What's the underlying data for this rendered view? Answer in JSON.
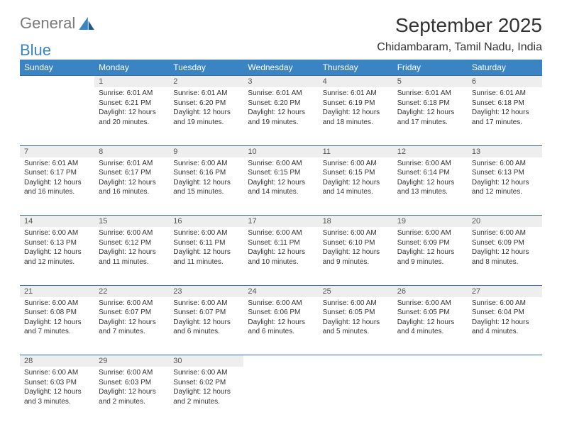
{
  "brand": {
    "part1": "General",
    "part2": "Blue"
  },
  "title": "September 2025",
  "location": "Chidambaram, Tamil Nadu, India",
  "colors": {
    "header_bg": "#3a84c4",
    "header_text": "#ffffff",
    "daynum_bg": "#eeeeee",
    "row_border": "#3a6ea8",
    "text": "#333333",
    "brand_gray": "#7a7a7a",
    "brand_blue": "#3a84c4",
    "page_bg": "#ffffff"
  },
  "typography": {
    "month_title_fontsize": 28,
    "location_fontsize": 16,
    "weekday_fontsize": 12,
    "daynum_fontsize": 11,
    "cell_fontsize": 10
  },
  "weekdays": [
    "Sunday",
    "Monday",
    "Tuesday",
    "Wednesday",
    "Thursday",
    "Friday",
    "Saturday"
  ],
  "weeks": [
    [
      null,
      {
        "n": "1",
        "sr": "Sunrise: 6:01 AM",
        "ss": "Sunset: 6:21 PM",
        "dl": "Daylight: 12 hours and 20 minutes."
      },
      {
        "n": "2",
        "sr": "Sunrise: 6:01 AM",
        "ss": "Sunset: 6:20 PM",
        "dl": "Daylight: 12 hours and 19 minutes."
      },
      {
        "n": "3",
        "sr": "Sunrise: 6:01 AM",
        "ss": "Sunset: 6:20 PM",
        "dl": "Daylight: 12 hours and 19 minutes."
      },
      {
        "n": "4",
        "sr": "Sunrise: 6:01 AM",
        "ss": "Sunset: 6:19 PM",
        "dl": "Daylight: 12 hours and 18 minutes."
      },
      {
        "n": "5",
        "sr": "Sunrise: 6:01 AM",
        "ss": "Sunset: 6:18 PM",
        "dl": "Daylight: 12 hours and 17 minutes."
      },
      {
        "n": "6",
        "sr": "Sunrise: 6:01 AM",
        "ss": "Sunset: 6:18 PM",
        "dl": "Daylight: 12 hours and 17 minutes."
      }
    ],
    [
      {
        "n": "7",
        "sr": "Sunrise: 6:01 AM",
        "ss": "Sunset: 6:17 PM",
        "dl": "Daylight: 12 hours and 16 minutes."
      },
      {
        "n": "8",
        "sr": "Sunrise: 6:01 AM",
        "ss": "Sunset: 6:17 PM",
        "dl": "Daylight: 12 hours and 16 minutes."
      },
      {
        "n": "9",
        "sr": "Sunrise: 6:00 AM",
        "ss": "Sunset: 6:16 PM",
        "dl": "Daylight: 12 hours and 15 minutes."
      },
      {
        "n": "10",
        "sr": "Sunrise: 6:00 AM",
        "ss": "Sunset: 6:15 PM",
        "dl": "Daylight: 12 hours and 14 minutes."
      },
      {
        "n": "11",
        "sr": "Sunrise: 6:00 AM",
        "ss": "Sunset: 6:15 PM",
        "dl": "Daylight: 12 hours and 14 minutes."
      },
      {
        "n": "12",
        "sr": "Sunrise: 6:00 AM",
        "ss": "Sunset: 6:14 PM",
        "dl": "Daylight: 12 hours and 13 minutes."
      },
      {
        "n": "13",
        "sr": "Sunrise: 6:00 AM",
        "ss": "Sunset: 6:13 PM",
        "dl": "Daylight: 12 hours and 12 minutes."
      }
    ],
    [
      {
        "n": "14",
        "sr": "Sunrise: 6:00 AM",
        "ss": "Sunset: 6:13 PM",
        "dl": "Daylight: 12 hours and 12 minutes."
      },
      {
        "n": "15",
        "sr": "Sunrise: 6:00 AM",
        "ss": "Sunset: 6:12 PM",
        "dl": "Daylight: 12 hours and 11 minutes."
      },
      {
        "n": "16",
        "sr": "Sunrise: 6:00 AM",
        "ss": "Sunset: 6:11 PM",
        "dl": "Daylight: 12 hours and 11 minutes."
      },
      {
        "n": "17",
        "sr": "Sunrise: 6:00 AM",
        "ss": "Sunset: 6:11 PM",
        "dl": "Daylight: 12 hours and 10 minutes."
      },
      {
        "n": "18",
        "sr": "Sunrise: 6:00 AM",
        "ss": "Sunset: 6:10 PM",
        "dl": "Daylight: 12 hours and 9 minutes."
      },
      {
        "n": "19",
        "sr": "Sunrise: 6:00 AM",
        "ss": "Sunset: 6:09 PM",
        "dl": "Daylight: 12 hours and 9 minutes."
      },
      {
        "n": "20",
        "sr": "Sunrise: 6:00 AM",
        "ss": "Sunset: 6:09 PM",
        "dl": "Daylight: 12 hours and 8 minutes."
      }
    ],
    [
      {
        "n": "21",
        "sr": "Sunrise: 6:00 AM",
        "ss": "Sunset: 6:08 PM",
        "dl": "Daylight: 12 hours and 7 minutes."
      },
      {
        "n": "22",
        "sr": "Sunrise: 6:00 AM",
        "ss": "Sunset: 6:07 PM",
        "dl": "Daylight: 12 hours and 7 minutes."
      },
      {
        "n": "23",
        "sr": "Sunrise: 6:00 AM",
        "ss": "Sunset: 6:07 PM",
        "dl": "Daylight: 12 hours and 6 minutes."
      },
      {
        "n": "24",
        "sr": "Sunrise: 6:00 AM",
        "ss": "Sunset: 6:06 PM",
        "dl": "Daylight: 12 hours and 6 minutes."
      },
      {
        "n": "25",
        "sr": "Sunrise: 6:00 AM",
        "ss": "Sunset: 6:05 PM",
        "dl": "Daylight: 12 hours and 5 minutes."
      },
      {
        "n": "26",
        "sr": "Sunrise: 6:00 AM",
        "ss": "Sunset: 6:05 PM",
        "dl": "Daylight: 12 hours and 4 minutes."
      },
      {
        "n": "27",
        "sr": "Sunrise: 6:00 AM",
        "ss": "Sunset: 6:04 PM",
        "dl": "Daylight: 12 hours and 4 minutes."
      }
    ],
    [
      {
        "n": "28",
        "sr": "Sunrise: 6:00 AM",
        "ss": "Sunset: 6:03 PM",
        "dl": "Daylight: 12 hours and 3 minutes."
      },
      {
        "n": "29",
        "sr": "Sunrise: 6:00 AM",
        "ss": "Sunset: 6:03 PM",
        "dl": "Daylight: 12 hours and 2 minutes."
      },
      {
        "n": "30",
        "sr": "Sunrise: 6:00 AM",
        "ss": "Sunset: 6:02 PM",
        "dl": "Daylight: 12 hours and 2 minutes."
      },
      null,
      null,
      null,
      null
    ]
  ]
}
